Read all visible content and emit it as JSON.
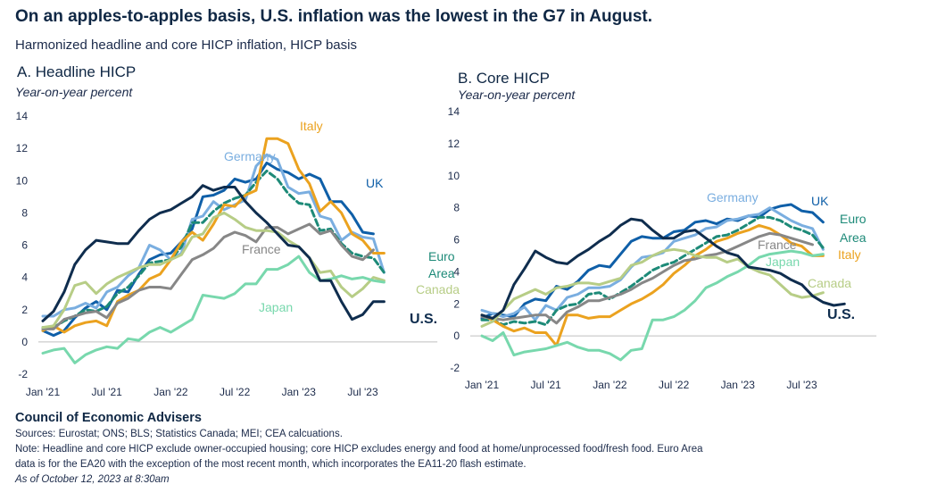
{
  "header": {
    "title": "On an apples-to-apples basis, U.S. inflation was the lowest in the G7 in August.",
    "subtitle": "Harmonized headline and core HICP inflation, HICP basis"
  },
  "colors": {
    "UK": "#0f5fa8",
    "Germany": "#7aaee0",
    "Euro Area": "#1d8a78",
    "Italy": "#eba21f",
    "France": "#878787",
    "Canada": "#b7cd86",
    "Japan": "#78d8ad",
    "U.S.": "#0f2d4e"
  },
  "chart_data": [
    {
      "type": "line",
      "panel_title": "A. Headline HICP",
      "ylabel": "Year-on-year percent",
      "ylim": [
        -2,
        14
      ],
      "yticks": [
        "-2",
        "0",
        "2",
        "4",
        "6",
        "8",
        "10",
        "12",
        "14"
      ],
      "xticks": [
        "Jan '21",
        "Jul '21",
        "Jan '22",
        "Jul '22",
        "Jan '23",
        "Jul '23"
      ],
      "x_start": "Jan 2021",
      "x_step": "month",
      "grid": false,
      "series": [
        {
          "name": "UK",
          "label": "UK",
          "values": [
            0.7,
            0.4,
            0.7,
            1.5,
            2.1,
            2.5,
            2.0,
            3.2,
            3.1,
            4.2,
            5.1,
            5.4,
            5.5,
            6.2,
            7.0,
            9.0,
            9.1,
            9.4,
            10.1,
            9.9,
            10.1,
            11.1,
            10.7,
            10.5,
            10.1,
            10.4,
            10.1,
            8.7,
            8.7,
            7.9,
            6.8,
            6.7
          ]
        },
        {
          "name": "Germany",
          "label": "Germany",
          "values": [
            1.6,
            1.6,
            2.0,
            2.1,
            2.4,
            2.1,
            3.1,
            3.4,
            4.1,
            4.6,
            6.0,
            5.7,
            5.1,
            5.5,
            7.6,
            7.8,
            8.7,
            8.2,
            8.5,
            8.8,
            10.9,
            11.6,
            11.3,
            9.6,
            9.2,
            9.3,
            7.8,
            7.6,
            6.3,
            6.8,
            6.5,
            6.4,
            4.3
          ]
        },
        {
          "name": "Euro Area",
          "label": "Euro Area",
          "label_lines": [
            "Euro",
            "Area"
          ],
          "values": [
            0.9,
            0.9,
            1.3,
            1.6,
            2.0,
            1.9,
            2.2,
            3.0,
            3.4,
            4.1,
            4.9,
            5.0,
            5.1,
            5.9,
            7.4,
            7.4,
            8.1,
            8.6,
            8.9,
            9.1,
            9.9,
            10.6,
            10.1,
            9.2,
            8.6,
            8.5,
            6.9,
            7.0,
            6.1,
            5.5,
            5.3,
            5.2,
            4.3
          ]
        },
        {
          "name": "Italy",
          "label": "Italy",
          "values": [
            0.7,
            1.0,
            0.6,
            1.0,
            1.2,
            1.3,
            1.0,
            2.5,
            2.9,
            3.2,
            3.9,
            4.2,
            5.1,
            6.2,
            6.8,
            6.3,
            7.3,
            8.5,
            8.4,
            9.1,
            9.4,
            12.6,
            12.6,
            12.3,
            10.7,
            9.8,
            8.1,
            8.7,
            8.0,
            6.7,
            6.3,
            5.5,
            5.5
          ]
        },
        {
          "name": "France",
          "label": "France",
          "values": [
            0.8,
            0.8,
            1.4,
            1.6,
            1.8,
            1.9,
            1.5,
            2.4,
            2.7,
            3.2,
            3.4,
            3.4,
            3.3,
            4.2,
            5.1,
            5.4,
            5.8,
            6.5,
            6.8,
            6.6,
            6.2,
            7.1,
            7.1,
            6.7,
            7.0,
            7.3,
            6.7,
            6.9,
            6.0,
            5.3,
            5.1,
            5.7
          ]
        },
        {
          "name": "Canada",
          "label": "Canada",
          "values": [
            0.9,
            1.0,
            2.0,
            3.5,
            3.7,
            3.0,
            3.6,
            4.0,
            4.3,
            4.6,
            4.8,
            4.8,
            5.1,
            5.4,
            6.5,
            6.7,
            7.7,
            8.0,
            7.6,
            7.1,
            6.9,
            6.9,
            6.8,
            6.3,
            5.9,
            5.2,
            4.3,
            4.4,
            3.4,
            2.8,
            3.3,
            4.0,
            3.8
          ]
        },
        {
          "name": "Japan",
          "label": "Japan",
          "values": [
            -0.7,
            -0.5,
            -0.4,
            -1.3,
            -0.8,
            -0.5,
            -0.3,
            -0.4,
            0.2,
            0.1,
            0.6,
            0.9,
            0.6,
            1.0,
            1.4,
            2.9,
            2.8,
            2.7,
            3.0,
            3.6,
            3.6,
            4.5,
            4.5,
            4.8,
            5.3,
            4.3,
            3.8,
            3.9,
            4.1,
            3.9,
            4.0,
            3.8,
            3.7
          ]
        },
        {
          "name": "U.S.",
          "label": "U.S.",
          "values": [
            1.3,
            1.9,
            3.1,
            4.8,
            5.7,
            6.3,
            6.2,
            6.1,
            6.1,
            6.9,
            7.6,
            8.0,
            8.2,
            8.6,
            9.0,
            9.7,
            9.4,
            9.6,
            9.6,
            8.7,
            8.0,
            7.4,
            6.7,
            6.0,
            5.9,
            5.2,
            3.8,
            3.8,
            2.5,
            1.4,
            1.7,
            2.5,
            2.5
          ]
        }
      ]
    },
    {
      "type": "line",
      "panel_title": "B. Core HICP",
      "ylabel": "Year-on-year percent",
      "ylim": [
        -2,
        14
      ],
      "yticks": [
        "-2",
        "0",
        "2",
        "4",
        "6",
        "8",
        "10",
        "12",
        "14"
      ],
      "xticks": [
        "Jan '21",
        "Jul '21",
        "Jan '22",
        "Jul '22",
        "Jan '23",
        "Jul '23"
      ],
      "x_start": "Jan 2021",
      "x_step": "month",
      "grid": false,
      "series": [
        {
          "name": "UK",
          "label": "UK",
          "values": [
            1.1,
            1.4,
            1.3,
            1.2,
            2.0,
            2.3,
            2.2,
            3.1,
            2.9,
            3.4,
            4.1,
            4.4,
            4.3,
            5.1,
            5.9,
            6.2,
            6.1,
            6.1,
            6.5,
            6.6,
            7.1,
            7.2,
            7.0,
            7.3,
            7.2,
            7.5,
            7.4,
            7.9,
            8.1,
            8.2,
            7.8,
            7.7,
            7.1
          ]
        },
        {
          "name": "Germany",
          "label": "Germany",
          "values": [
            1.6,
            1.4,
            1.2,
            1.4,
            1.8,
            1.0,
            1.9,
            1.6,
            2.4,
            2.6,
            3.0,
            3.0,
            3.1,
            3.5,
            4.3,
            4.9,
            5.0,
            5.2,
            5.9,
            6.1,
            6.3,
            6.7,
            6.8,
            7.2,
            7.3,
            7.5,
            7.6,
            8.0,
            7.6,
            7.2,
            6.9,
            6.7,
            5.4
          ]
        },
        {
          "name": "Euro Area",
          "label": "Euro Area",
          "label_lines": [
            "Euro",
            "Area"
          ],
          "values": [
            1.0,
            1.0,
            0.7,
            0.9,
            0.8,
            0.9,
            0.7,
            1.6,
            1.9,
            2.0,
            2.6,
            2.7,
            2.3,
            2.7,
            3.1,
            3.6,
            4.1,
            4.4,
            4.6,
            5.0,
            5.4,
            5.8,
            6.2,
            6.3,
            6.6,
            7.0,
            7.4,
            7.4,
            7.2,
            6.8,
            6.6,
            6.3,
            5.5
          ]
        },
        {
          "name": "Italy",
          "label": "Italy",
          "values": [
            1.3,
            1.0,
            0.6,
            0.3,
            0.5,
            0.2,
            0.2,
            -0.6,
            1.3,
            1.3,
            1.1,
            1.2,
            1.2,
            1.6,
            2.0,
            2.3,
            2.7,
            3.2,
            3.9,
            4.4,
            5.0,
            5.4,
            5.9,
            6.1,
            6.4,
            6.6,
            6.9,
            6.7,
            6.3,
            5.8,
            5.6,
            5.0,
            5.0
          ]
        },
        {
          "name": "France",
          "label": "France",
          "values": [
            1.2,
            1.1,
            1.0,
            1.1,
            1.2,
            1.3,
            1.3,
            0.8,
            1.5,
            1.8,
            2.2,
            2.2,
            2.4,
            2.6,
            2.9,
            3.3,
            3.6,
            4.0,
            4.4,
            4.7,
            4.8,
            5.0,
            5.1,
            5.3,
            5.6,
            5.9,
            6.2,
            6.4,
            6.3,
            6.1,
            5.9,
            5.7
          ]
        },
        {
          "name": "Canada",
          "label": "Canada",
          "values": [
            0.6,
            0.9,
            1.6,
            2.3,
            2.6,
            2.9,
            2.6,
            3.0,
            3.1,
            3.3,
            3.3,
            3.2,
            3.4,
            3.6,
            4.4,
            4.6,
            5.0,
            5.3,
            5.4,
            5.3,
            5.0,
            4.9,
            4.9,
            4.6,
            4.8,
            4.3,
            4.0,
            3.8,
            3.2,
            2.6,
            2.4,
            2.5,
            2.7
          ]
        },
        {
          "name": "Japan",
          "label": "Japan",
          "values": [
            0.0,
            -0.3,
            0.2,
            -1.2,
            -1.0,
            -0.9,
            -0.8,
            -0.6,
            -0.4,
            -0.7,
            -0.9,
            -0.9,
            -1.1,
            -1.5,
            -0.9,
            -0.8,
            1.0,
            1.0,
            1.2,
            1.6,
            2.2,
            3.0,
            3.3,
            3.7,
            4.0,
            4.4,
            4.9,
            5.1,
            5.2,
            5.3,
            5.2,
            5.0,
            5.1
          ]
        },
        {
          "name": "U.S.",
          "label": "U.S.",
          "values": [
            1.3,
            1.1,
            1.6,
            3.2,
            4.2,
            5.3,
            4.9,
            4.6,
            4.5,
            5.0,
            5.4,
            5.9,
            6.3,
            6.9,
            7.3,
            7.2,
            6.6,
            6.1,
            6.1,
            6.5,
            6.6,
            6.1,
            5.6,
            5.2,
            5.0,
            4.3,
            4.2,
            4.1,
            3.9,
            3.5,
            3.2,
            2.5,
            2.1,
            1.9,
            2.0
          ]
        }
      ]
    }
  ],
  "footer": {
    "org": "Council of Economic Advisers",
    "sources": "Sources: Eurostat; ONS; BLS; Statistics Canada; MEI; CEA calcuations.",
    "note_line1": "Note: Headline and core HICP exclude owner-occupied housing; core HICP excludes energy and food at home/unprocessed food/fresh food. Euro Area",
    "note_line2": "data is for the EA20 with the exception of the most recent month, which incorporates the EA11-20 flash estimate.",
    "as_of": "As of October 12, 2023 at 8:30am"
  }
}
